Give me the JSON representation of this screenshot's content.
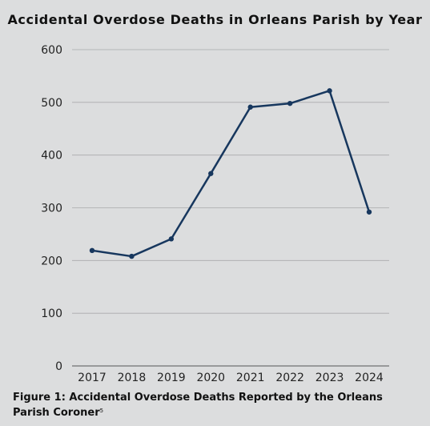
{
  "chart_data": {
    "type": "line",
    "title": "Accidental Overdose Deaths in Orleans Parish by Year",
    "xlabel": "",
    "ylabel": "",
    "categories": [
      "2017",
      "2018",
      "2019",
      "2020",
      "2021",
      "2022",
      "2023",
      "2024"
    ],
    "series": [
      {
        "values": [
          219,
          208,
          241,
          365,
          491,
          498,
          522,
          292
        ]
      }
    ],
    "ylim": [
      0,
      600
    ],
    "yticks": [
      0,
      100,
      200,
      300,
      400,
      500,
      600
    ],
    "grid": true,
    "line_color": "#17375e"
  },
  "caption": {
    "text": "Figure 1: Accidental Overdose Deaths Reported by the Orleans Parish Coroner",
    "footnote": "5"
  }
}
